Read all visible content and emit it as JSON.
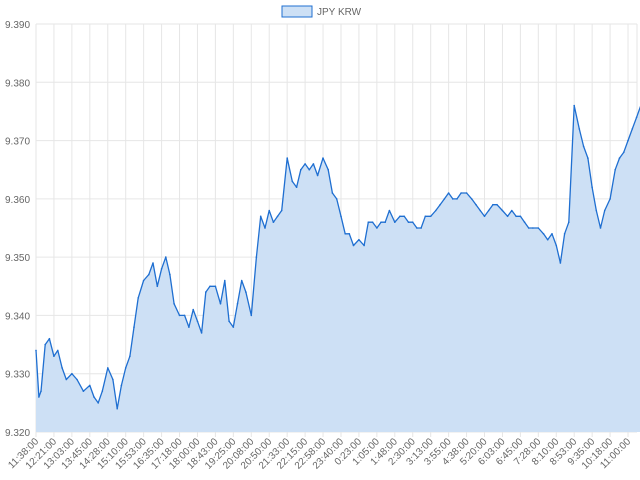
{
  "chart_data": {
    "type": "area",
    "legend": {
      "position": "top",
      "entries": [
        "JPY KRW"
      ]
    },
    "colors": {
      "line": "#1f6fd1",
      "fill": "#cde0f5",
      "grid": "#e6e6e6",
      "text": "#666666"
    },
    "ylim": [
      9.32,
      9.39
    ],
    "yticks": [
      "9.320",
      "9.330",
      "9.340",
      "9.350",
      "9.360",
      "9.370",
      "9.380",
      "9.390"
    ],
    "ytick_values": [
      9.32,
      9.33,
      9.34,
      9.35,
      9.36,
      9.37,
      9.38,
      9.39
    ],
    "xticks": [
      "11:38:00",
      "12:21:00",
      "13:03:00",
      "13:45:00",
      "14:28:00",
      "15:10:00",
      "15:53:00",
      "16:35:00",
      "17:18:00",
      "18:00:00",
      "18:43:00",
      "19:25:00",
      "20:08:00",
      "20:50:00",
      "21:33:00",
      "22:15:00",
      "22:58:00",
      "23:40:00",
      "0:23:00",
      "1:05:00",
      "1:48:00",
      "2:30:00",
      "3:13:00",
      "3:55:00",
      "4:38:00",
      "5:20:00",
      "6:03:00",
      "6:45:00",
      "7:28:00",
      "8:10:00",
      "8:53:00",
      "9:35:00",
      "10:18:00",
      "11:00:00"
    ],
    "series": [
      {
        "name": "JPY KRW",
        "x": [
          "11:38:00",
          "11:45:00",
          "11:50:00",
          "12:00:00",
          "12:10:00",
          "12:21:00",
          "12:30:00",
          "12:40:00",
          "12:50:00",
          "13:03:00",
          "13:15:00",
          "13:30:00",
          "13:45:00",
          "13:55:00",
          "14:05:00",
          "14:15:00",
          "14:28:00",
          "14:40:00",
          "14:50:00",
          "15:00:00",
          "15:10:00",
          "15:20:00",
          "15:30:00",
          "15:40:00",
          "15:53:00",
          "16:05:00",
          "16:15:00",
          "16:25:00",
          "16:35:00",
          "16:45:00",
          "16:55:00",
          "17:05:00",
          "17:18:00",
          "17:30:00",
          "17:40:00",
          "17:50:00",
          "18:00:00",
          "18:10:00",
          "18:20:00",
          "18:30:00",
          "18:43:00",
          "18:55:00",
          "19:05:00",
          "19:15:00",
          "19:25:00",
          "19:35:00",
          "19:45:00",
          "19:55:00",
          "20:08:00",
          "20:20:00",
          "20:30:00",
          "20:40:00",
          "20:50:00",
          "21:00:00",
          "21:10:00",
          "21:20:00",
          "21:33:00",
          "21:45:00",
          "21:55:00",
          "22:05:00",
          "22:15:00",
          "22:25:00",
          "22:35:00",
          "22:45:00",
          "22:58:00",
          "23:10:00",
          "23:20:00",
          "23:30:00",
          "23:40:00",
          "23:50:00",
          "0:00:00",
          "0:10:00",
          "0:23:00",
          "0:35:00",
          "0:45:00",
          "0:55:00",
          "1:05:00",
          "1:15:00",
          "1:25:00",
          "1:35:00",
          "1:48:00",
          "2:00:00",
          "2:10:00",
          "2:20:00",
          "2:30:00",
          "2:40:00",
          "2:50:00",
          "3:00:00",
          "3:13:00",
          "3:25:00",
          "3:35:00",
          "3:45:00",
          "3:55:00",
          "4:05:00",
          "4:15:00",
          "4:25:00",
          "4:38:00",
          "4:50:00",
          "5:00:00",
          "5:10:00",
          "5:20:00",
          "5:30:00",
          "5:40:00",
          "5:50:00",
          "6:03:00",
          "6:15:00",
          "6:25:00",
          "6:35:00",
          "6:45:00",
          "6:55:00",
          "7:05:00",
          "7:15:00",
          "7:28:00",
          "7:40:00",
          "7:50:00",
          "8:00:00",
          "8:10:00",
          "8:20:00",
          "8:30:00",
          "8:40:00",
          "8:53:00",
          "9:05:00",
          "9:15:00",
          "9:25:00",
          "9:35:00",
          "9:45:00",
          "9:55:00",
          "10:05:00",
          "10:18:00",
          "10:30:00",
          "10:40:00",
          "10:50:00",
          "11:00:00",
          "11:10:00",
          "11:20:00",
          "11:30:00"
        ],
        "values": [
          9.334,
          9.326,
          9.327,
          9.335,
          9.336,
          9.333,
          9.334,
          9.331,
          9.329,
          9.33,
          9.329,
          9.327,
          9.328,
          9.326,
          9.325,
          9.327,
          9.331,
          9.329,
          9.324,
          9.328,
          9.331,
          9.333,
          9.338,
          9.343,
          9.346,
          9.347,
          9.349,
          9.345,
          9.348,
          9.35,
          9.347,
          9.342,
          9.34,
          9.34,
          9.338,
          9.341,
          9.339,
          9.337,
          9.344,
          9.345,
          9.345,
          9.342,
          9.346,
          9.339,
          9.338,
          9.342,
          9.346,
          9.344,
          9.34,
          9.35,
          9.357,
          9.355,
          9.358,
          9.356,
          9.357,
          9.358,
          9.367,
          9.363,
          9.362,
          9.365,
          9.366,
          9.365,
          9.366,
          9.364,
          9.367,
          9.365,
          9.361,
          9.36,
          9.357,
          9.354,
          9.354,
          9.352,
          9.353,
          9.352,
          9.356,
          9.356,
          9.355,
          9.356,
          9.356,
          9.358,
          9.356,
          9.357,
          9.357,
          9.356,
          9.356,
          9.355,
          9.355,
          9.357,
          9.357,
          9.358,
          9.359,
          9.36,
          9.361,
          9.36,
          9.36,
          9.361,
          9.361,
          9.36,
          9.359,
          9.358,
          9.357,
          9.358,
          9.359,
          9.359,
          9.358,
          9.357,
          9.358,
          9.357,
          9.357,
          9.356,
          9.355,
          9.355,
          9.355,
          9.354,
          9.353,
          9.354,
          9.352,
          9.349,
          9.354,
          9.356,
          9.376,
          9.372,
          9.369,
          9.367,
          9.362,
          9.358,
          9.355,
          9.358,
          9.36,
          9.365,
          9.367,
          9.368,
          9.37,
          9.372,
          9.374,
          9.376
        ]
      }
    ]
  }
}
